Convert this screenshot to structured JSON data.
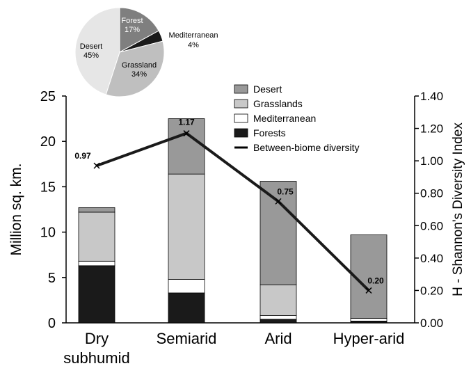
{
  "chart_data": [
    {
      "type": "pie",
      "slices": [
        {
          "label": "Forest",
          "pct_label": "17%",
          "value": 17,
          "color": "#7f7f7f",
          "text_color": "#ffffff"
        },
        {
          "label": "Mediterranean",
          "pct_label": "4%",
          "value": 4,
          "color": "#1a1a1a",
          "text_color": "#000000"
        },
        {
          "label": "Grassland",
          "pct_label": "34%",
          "value": 34,
          "color": "#bfbfbf",
          "text_color": "#000000"
        },
        {
          "label": "Desert",
          "pct_label": "45%",
          "value": 45,
          "color": "#e6e6e6",
          "text_color": "#000000"
        }
      ]
    },
    {
      "type": "bar",
      "stacked": true,
      "categories": [
        "Dry subhumid",
        "Semiarid",
        "Arid",
        "Hyper-arid"
      ],
      "category_lines": [
        [
          "Dry",
          "subhumid"
        ],
        [
          "Semiarid"
        ],
        [
          "Arid"
        ],
        [
          "Hyper-arid"
        ]
      ],
      "ylabel": "Million sq. km.",
      "y2label": "H - Shannon's Diversity Index",
      "ylim": [
        0,
        25
      ],
      "y2lim": [
        0,
        1.4
      ],
      "yticks": [
        "0",
        "5",
        "10",
        "15",
        "20",
        "25"
      ],
      "y2ticks": [
        "0.00",
        "0.20",
        "0.40",
        "0.60",
        "0.80",
        "1.00",
        "1.20",
        "1.40"
      ],
      "series": [
        {
          "name": "Forests",
          "color": "#1a1a1a",
          "values": [
            6.3,
            3.3,
            0.4,
            0.2
          ]
        },
        {
          "name": "Mediterranean",
          "color": "#ffffff",
          "values": [
            0.5,
            1.5,
            0.4,
            0.3
          ]
        },
        {
          "name": "Grasslands",
          "color": "#c8c8c8",
          "values": [
            5.4,
            11.6,
            3.4,
            0.0
          ]
        },
        {
          "name": "Desert",
          "color": "#999999",
          "values": [
            0.5,
            6.1,
            11.4,
            9.2
          ]
        }
      ],
      "legend_order": [
        "Desert",
        "Grasslands",
        "Mediterranean",
        "Forests"
      ],
      "line_series": {
        "name": "Between-biome diversity",
        "values": [
          0.97,
          1.17,
          0.75,
          0.2
        ],
        "labels": [
          "0.97",
          "1.17",
          "0.75",
          "0.20"
        ]
      },
      "legend_placement": "top-center",
      "grid": false
    }
  ]
}
